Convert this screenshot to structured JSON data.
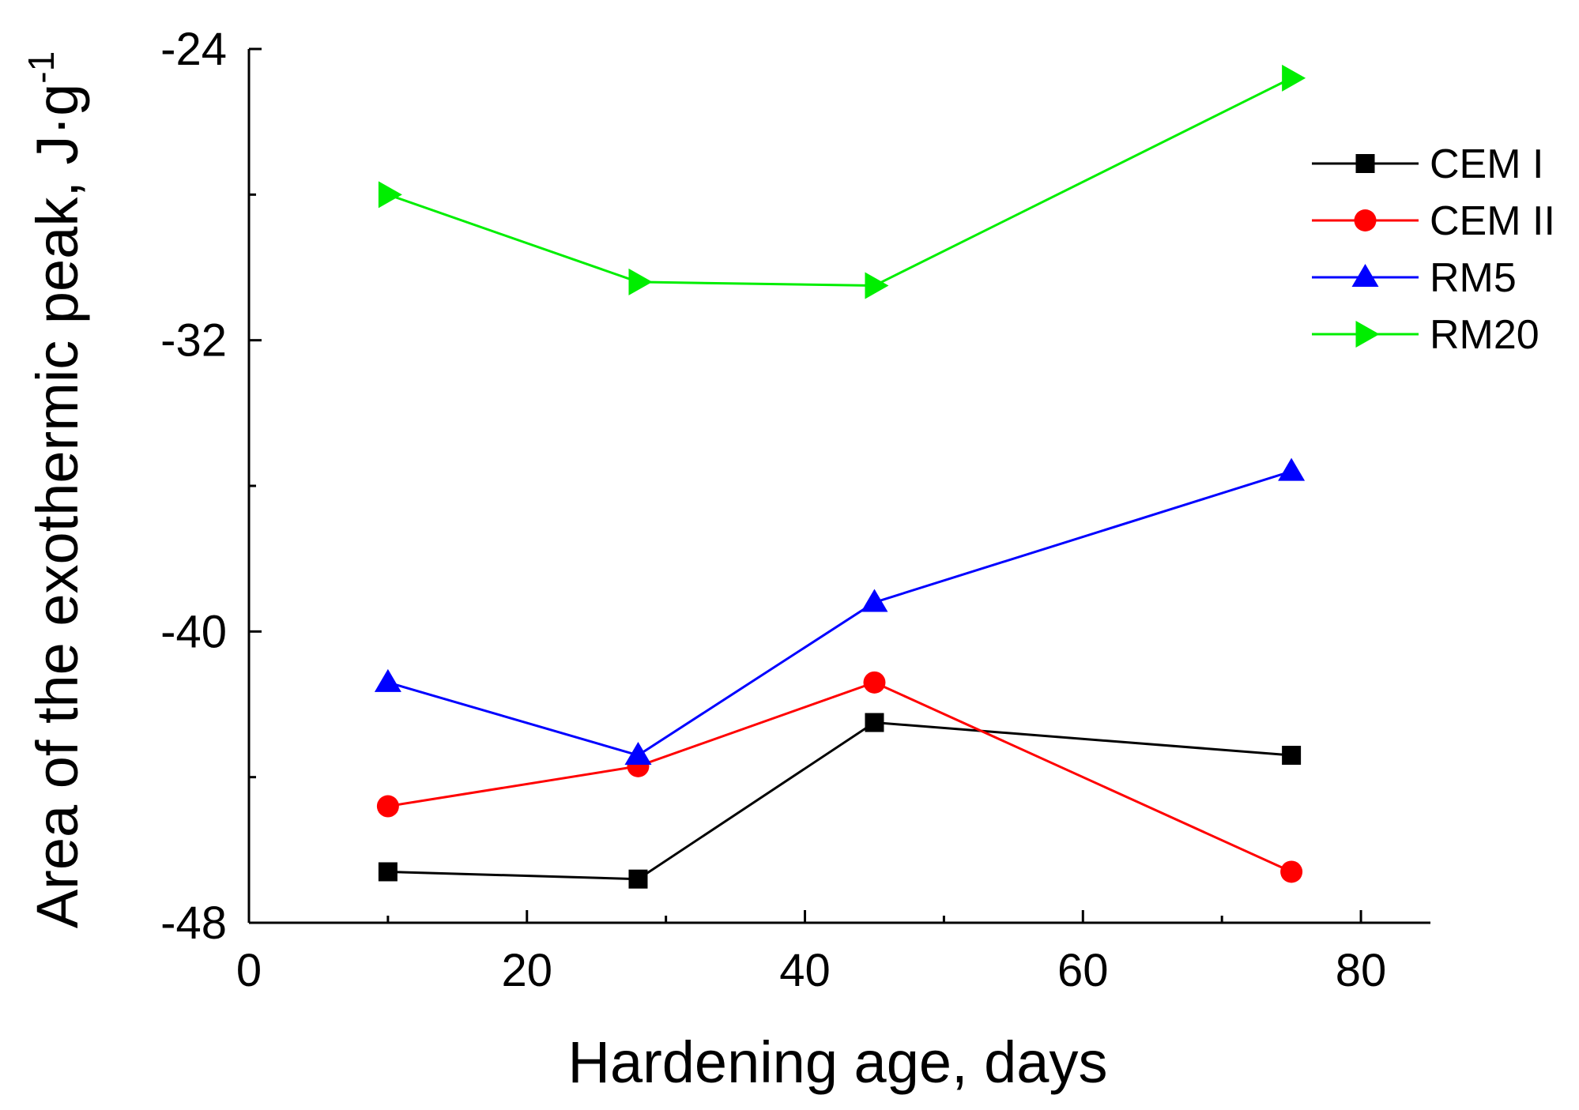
{
  "chart_data": {
    "type": "line",
    "title": "",
    "xlabel": "Hardening age, days",
    "ylabel": "Area of the exothermic peak, J·g",
    "ylabel_superscript": "-1",
    "xlim": [
      0,
      85
    ],
    "ylim": [
      -48,
      -24
    ],
    "x_ticks": [
      0,
      20,
      40,
      60,
      80
    ],
    "x_tick_labels": [
      "0",
      "20",
      "40",
      "60",
      "80"
    ],
    "y_ticks": [
      -48,
      -40,
      -32,
      -24
    ],
    "y_tick_labels": [
      "-48",
      "-40",
      "-32",
      "-24"
    ],
    "grid": false,
    "legend_position": "top-right",
    "series": [
      {
        "name": "CEM I",
        "color": "#000000",
        "marker": "square",
        "x": [
          10,
          28,
          45,
          75
        ],
        "y": [
          -46.6,
          -46.8,
          -42.5,
          -43.4
        ]
      },
      {
        "name": "CEM II",
        "color": "#ff0000",
        "marker": "circle",
        "x": [
          10,
          28,
          45,
          75
        ],
        "y": [
          -44.8,
          -43.7,
          -41.4,
          -46.6
        ]
      },
      {
        "name": "RM5",
        "color": "#0000ff",
        "marker": "triangle-up",
        "x": [
          10,
          28,
          45,
          75
        ],
        "y": [
          -41.4,
          -43.4,
          -39.2,
          -35.6
        ]
      },
      {
        "name": "RM20",
        "color": "#00ee00",
        "marker": "triangle-right",
        "x": [
          10,
          28,
          45,
          75
        ],
        "y": [
          -28.0,
          -30.4,
          -30.5,
          -24.8
        ]
      }
    ]
  }
}
